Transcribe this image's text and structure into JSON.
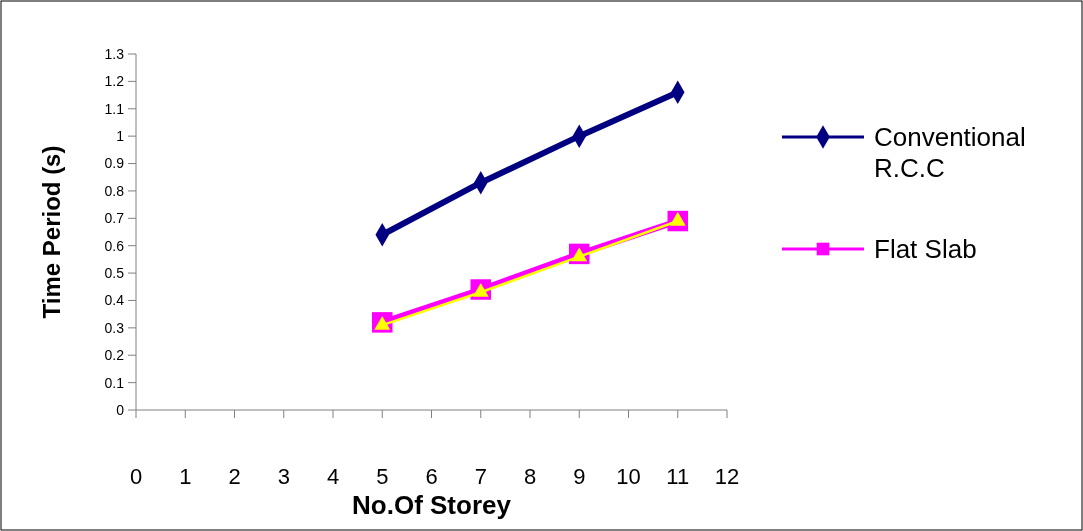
{
  "chart_data": {
    "type": "line",
    "xlabel": "No.Of Storey",
    "ylabel": "Time Period (s)",
    "xlim": [
      0,
      12
    ],
    "xticks": [
      0,
      1,
      2,
      3,
      4,
      5,
      6,
      7,
      8,
      9,
      10,
      11,
      12
    ],
    "ylim": [
      0,
      1.3
    ],
    "yticks": [
      0,
      0.1,
      0.2,
      0.3,
      0.4,
      0.5,
      0.6,
      0.7,
      0.8,
      0.9,
      1,
      1.1,
      1.2,
      1.3
    ],
    "x": [
      5,
      7,
      9,
      11
    ],
    "series": [
      {
        "name": "Conventional R.C.C",
        "color": "#000080",
        "marker": "diamond",
        "values": [
          0.64,
          0.83,
          1.0,
          1.16
        ]
      },
      {
        "name": "Flat Slab",
        "color": "#ff00ff",
        "marker": "square",
        "values": [
          0.32,
          0.44,
          0.57,
          0.69
        ]
      },
      {
        "color": "#ffff00",
        "marker": "triangle",
        "values": [
          0.31,
          0.43,
          0.56,
          0.69
        ]
      }
    ],
    "legend": "right",
    "grid": false
  }
}
